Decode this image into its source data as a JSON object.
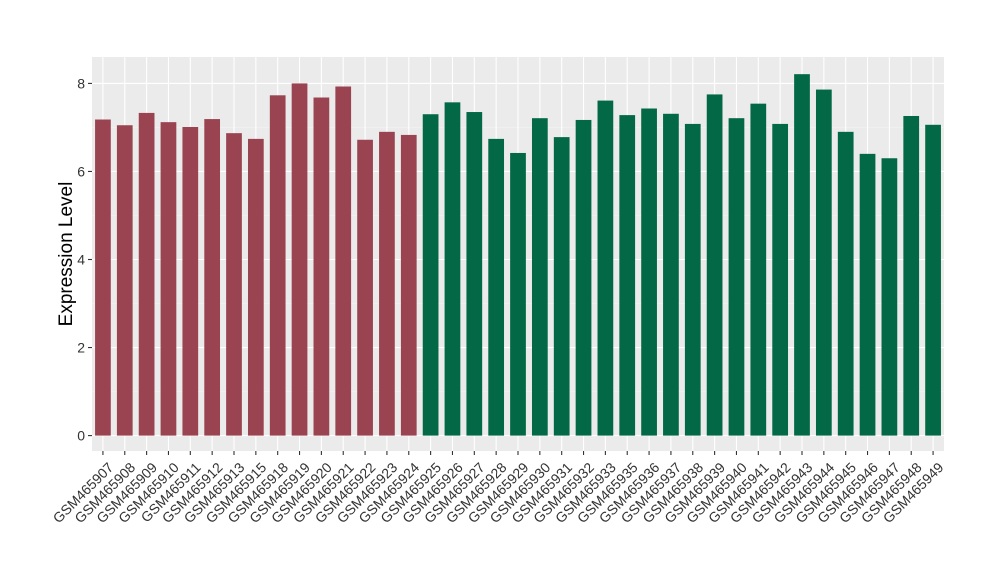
{
  "chart_data": {
    "type": "bar",
    "title": "",
    "xlabel": "",
    "ylabel": "Expression Level",
    "ylim": [
      -0.35,
      8.6
    ],
    "yticks": [
      0,
      2,
      4,
      6,
      8
    ],
    "grid": true,
    "legend": "none",
    "colors": {
      "panel_background": "#ebebeb",
      "grid_major": "#ffffff",
      "grid_minor": "#f4f4f4",
      "group_a": "#9b4451",
      "group_b": "#036845"
    },
    "categories": [
      "GSM465907",
      "GSM465908",
      "GSM465909",
      "GSM465910",
      "GSM465911",
      "GSM465912",
      "GSM465913",
      "GSM465915",
      "GSM465918",
      "GSM465919",
      "GSM465920",
      "GSM465921",
      "GSM465922",
      "GSM465923",
      "GSM465924",
      "GSM465925",
      "GSM465926",
      "GSM465927",
      "GSM465928",
      "GSM465929",
      "GSM465930",
      "GSM465931",
      "GSM465932",
      "GSM465933",
      "GSM465935",
      "GSM465936",
      "GSM465937",
      "GSM465938",
      "GSM465939",
      "GSM465940",
      "GSM465941",
      "GSM465942",
      "GSM465943",
      "GSM465944",
      "GSM465945",
      "GSM465946",
      "GSM465947",
      "GSM465948",
      "GSM465949"
    ],
    "values": [
      7.18,
      7.05,
      7.33,
      7.12,
      7.01,
      7.19,
      6.87,
      6.74,
      7.73,
      8.0,
      7.68,
      7.93,
      6.72,
      6.9,
      6.83,
      7.3,
      7.57,
      7.35,
      6.74,
      6.42,
      7.21,
      6.78,
      7.17,
      7.61,
      7.28,
      7.43,
      7.31,
      7.08,
      7.75,
      7.21,
      7.54,
      7.08,
      8.21,
      7.86,
      6.9,
      6.4,
      6.3,
      7.26,
      7.06
    ],
    "groups": [
      "a",
      "a",
      "a",
      "a",
      "a",
      "a",
      "a",
      "a",
      "a",
      "a",
      "a",
      "a",
      "a",
      "a",
      "a",
      "b",
      "b",
      "b",
      "b",
      "b",
      "b",
      "b",
      "b",
      "b",
      "b",
      "b",
      "b",
      "b",
      "b",
      "b",
      "b",
      "b",
      "b",
      "b",
      "b",
      "b",
      "b",
      "b",
      "b"
    ]
  }
}
